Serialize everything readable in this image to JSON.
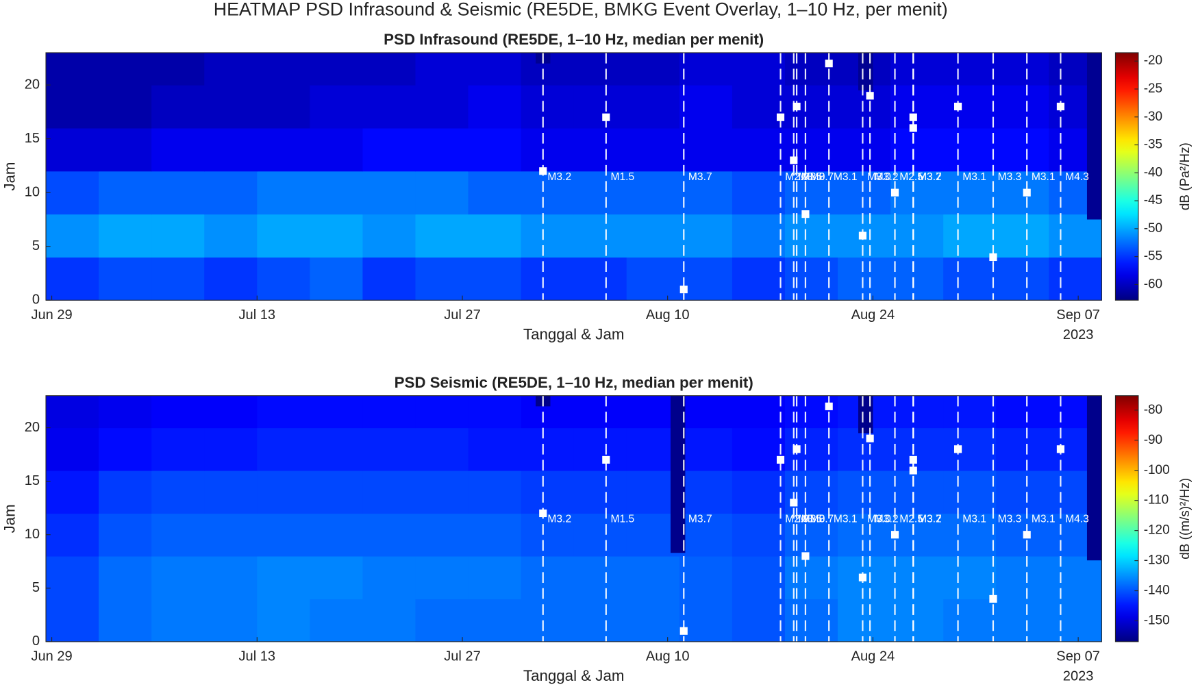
{
  "title": "HEATMAP PSD Infrasound & Seismic (RE5DE, BMKG Event Overlay, 1–10 Hz, per menit)",
  "chart_data": [
    {
      "type": "heatmap",
      "title": "PSD Infrasound (RE5DE, 1–10 Hz, median per menit)",
      "x_label": "Tanggal & Jam",
      "y_label": "Jam",
      "year_label": "2023",
      "xlim": [
        -0.4,
        71.6
      ],
      "xticks": [
        {
          "value": 0,
          "label": "Jun 29"
        },
        {
          "value": 14,
          "label": "Jul 13"
        },
        {
          "value": 28,
          "label": "Jul 27"
        },
        {
          "value": 42,
          "label": "Aug 10"
        },
        {
          "value": 56,
          "label": "Aug 24"
        },
        {
          "value": 70,
          "label": "Sep 07"
        }
      ],
      "ylim": [
        0,
        23
      ],
      "yticks": [
        0,
        5,
        10,
        15,
        20
      ],
      "colorbar_label": "dB  (Pa²/Hz)",
      "colormap": "jet",
      "clim": [
        -62.8,
        -18.5
      ],
      "cticks": [
        -60,
        -55,
        -50,
        -45,
        -40,
        -35,
        -30,
        -25,
        -20
      ],
      "x_edges": [
        -0.4,
        3.2,
        6.8,
        10.4,
        14,
        17.6,
        21.2,
        24.8,
        28.4,
        32,
        35.6,
        39.2,
        42.8,
        46.4,
        50,
        53.6,
        57.2,
        60.8,
        64.4,
        68,
        71.6
      ],
      "y_edges": [
        0,
        4,
        8,
        12,
        16,
        20,
        23
      ],
      "z": [
        [
          -55,
          -54,
          -54,
          -55,
          -54,
          -53,
          -55,
          -54,
          -54,
          -55,
          -55,
          -54,
          -54,
          -55,
          -54,
          -53,
          -53,
          -54,
          -54,
          -55
        ],
        [
          -51,
          -50,
          -50,
          -51,
          -50,
          -50,
          -51,
          -50,
          -50,
          -51,
          -51,
          -51,
          -51,
          -52,
          -51,
          -51,
          -51,
          -50,
          -50,
          -51
        ],
        [
          -54,
          -53,
          -53,
          -53,
          -52,
          -52,
          -52,
          -52,
          -53,
          -53,
          -53,
          -53,
          -53,
          -54,
          -53,
          -53,
          -52,
          -52,
          -52,
          -53
        ],
        [
          -59,
          -59,
          -58,
          -58,
          -58,
          -58,
          -57,
          -57,
          -57,
          -58,
          -58,
          -58,
          -58,
          -58,
          -58,
          -58,
          -57,
          -57,
          -57,
          -58
        ],
        [
          -61,
          -61,
          -60,
          -60,
          -60,
          -59,
          -59,
          -59,
          -58,
          -59,
          -59,
          -59,
          -58,
          -59,
          -59,
          -59,
          -58,
          -58,
          -58,
          -59
        ],
        [
          -61,
          -61,
          -61,
          -60,
          -60,
          -60,
          -60,
          -59,
          -59,
          -60,
          -60,
          -60,
          -59,
          -59,
          -60,
          -60,
          -59,
          -59,
          -59,
          -60
        ]
      ],
      "blocks": [
        {
          "x": [
            33,
            34
          ],
          "y": [
            22,
            23
          ],
          "value": -62
        },
        {
          "x": [
            55,
            56
          ],
          "y": [
            19.5,
            23
          ],
          "value": -62
        },
        {
          "x": [
            70.6,
            71.6
          ],
          "y": [
            7.5,
            23
          ],
          "value": -62
        }
      ],
      "events": [
        {
          "x": 33.5,
          "hour": 12,
          "label": "M3.2"
        },
        {
          "x": 37.8,
          "hour": 17,
          "label": "M1.5"
        },
        {
          "x": 43.1,
          "hour": 1,
          "label": "M3.7"
        },
        {
          "x": 49.7,
          "hour": 17,
          "label": "M2.9"
        },
        {
          "x": 50.6,
          "hour": 13,
          "label": "M3.5"
        },
        {
          "x": 50.8,
          "hour": 18,
          "label": "M3.0"
        },
        {
          "x": 51.4,
          "hour": 8,
          "label": "M3.7"
        },
        {
          "x": 53.0,
          "hour": 22,
          "label": "M3.1"
        },
        {
          "x": 55.3,
          "hour": 6,
          "label": "M3.0"
        },
        {
          "x": 55.8,
          "hour": 19,
          "label": "M3.2"
        },
        {
          "x": 57.5,
          "hour": 10,
          "label": "M2.5"
        },
        {
          "x": 58.75,
          "hour": 17,
          "label": "M3.2"
        },
        {
          "x": 58.75,
          "hour": 16,
          "label": "M3.7"
        },
        {
          "x": 61.8,
          "hour": 18,
          "label": "M3.1"
        },
        {
          "x": 64.2,
          "hour": 4,
          "label": "M3.3"
        },
        {
          "x": 66.5,
          "hour": 10,
          "label": "M3.1"
        },
        {
          "x": 68.8,
          "hour": 18,
          "label": "M4.3"
        }
      ]
    },
    {
      "type": "heatmap",
      "title": "PSD Seismic (RE5DE, 1–10 Hz, median per menit)",
      "x_label": "Tanggal & Jam",
      "y_label": "Jam",
      "year_label": "2023",
      "xlim": [
        -0.4,
        71.6
      ],
      "xticks": [
        {
          "value": 0,
          "label": "Jun 29"
        },
        {
          "value": 14,
          "label": "Jul 13"
        },
        {
          "value": 28,
          "label": "Jul 27"
        },
        {
          "value": 42,
          "label": "Aug 10"
        },
        {
          "value": 56,
          "label": "Aug 24"
        },
        {
          "value": 70,
          "label": "Sep 07"
        }
      ],
      "ylim": [
        0,
        23
      ],
      "yticks": [
        0,
        5,
        10,
        15,
        20
      ],
      "colorbar_label": "dB  ((m/s)²/Hz)",
      "colormap": "jet",
      "clim": [
        -156.9,
        -75.2
      ],
      "cticks": [
        -150,
        -140,
        -130,
        -120,
        -110,
        -100,
        -90,
        -80
      ],
      "x_edges": [
        -0.4,
        3.2,
        6.8,
        10.4,
        14,
        17.6,
        21.2,
        24.8,
        28.4,
        32,
        35.6,
        39.2,
        42.8,
        46.4,
        50,
        53.6,
        57.2,
        60.8,
        64.4,
        68,
        71.6
      ],
      "y_edges": [
        0,
        4,
        8,
        12,
        16,
        20,
        23
      ],
      "z": [
        [
          -141,
          -138,
          -137,
          -137,
          -136,
          -137,
          -137,
          -138,
          -138,
          -138,
          -138,
          -138,
          -139,
          -140,
          -138,
          -136,
          -136,
          -137,
          -137,
          -137
        ],
        [
          -141,
          -138,
          -137,
          -137,
          -136,
          -136,
          -137,
          -137,
          -137,
          -138,
          -138,
          -138,
          -139,
          -140,
          -137,
          -136,
          -136,
          -136,
          -137,
          -137
        ],
        [
          -143,
          -140,
          -139,
          -139,
          -139,
          -139,
          -139,
          -139,
          -139,
          -140,
          -140,
          -140,
          -140,
          -141,
          -139,
          -138,
          -138,
          -138,
          -139,
          -139
        ],
        [
          -145,
          -142,
          -141,
          -141,
          -141,
          -141,
          -141,
          -141,
          -141,
          -142,
          -142,
          -142,
          -142,
          -143,
          -141,
          -140,
          -140,
          -140,
          -141,
          -141
        ],
        [
          -148,
          -146,
          -145,
          -145,
          -144,
          -144,
          -144,
          -144,
          -145,
          -145,
          -145,
          -145,
          -145,
          -146,
          -144,
          -143,
          -143,
          -143,
          -144,
          -144
        ],
        [
          -149,
          -148,
          -147,
          -147,
          -146,
          -146,
          -146,
          -146,
          -146,
          -147,
          -147,
          -147,
          -147,
          -147,
          -146,
          -145,
          -145,
          -145,
          -146,
          -146
        ]
      ],
      "blocks": [
        {
          "x": [
            33,
            34
          ],
          "y": [
            22,
            23
          ],
          "value": -156
        },
        {
          "x": [
            42.2,
            43.2
          ],
          "y": [
            8.3,
            23
          ],
          "value": -156
        },
        {
          "x": [
            55,
            56
          ],
          "y": [
            19.5,
            23
          ],
          "value": -156
        },
        {
          "x": [
            70.6,
            71.6
          ],
          "y": [
            7.6,
            23
          ],
          "value": -156
        }
      ]
    }
  ]
}
